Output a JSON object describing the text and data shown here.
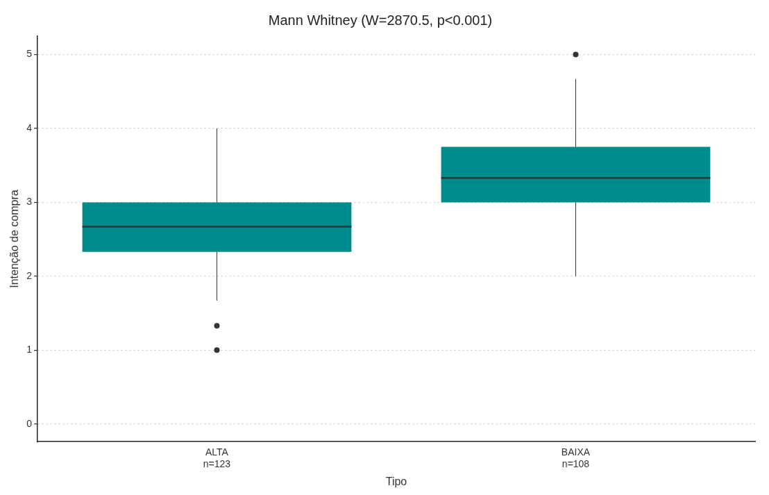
{
  "chart_data": {
    "type": "box",
    "title": "Mann Whitney (W=2870.5, p<0.001)",
    "xlabel": "Tipo",
    "ylabel": "Intenção de compra",
    "categories": [
      "ALTA\nn=123",
      "BAIXA\nn=108"
    ],
    "color": "#008b8b",
    "boxes": [
      {
        "low": 1.67,
        "q1": 2.33,
        "median": 2.67,
        "q3": 3.0,
        "high": 4.0,
        "outliers": [
          1.33,
          1.0
        ]
      },
      {
        "low": 2.0,
        "q1": 3.0,
        "median": 3.33,
        "q3": 3.75,
        "high": 4.67,
        "outliers": [
          5.0
        ]
      }
    ],
    "ylim": [
      -0.24,
      5.25
    ],
    "yticks": [
      0,
      1,
      2,
      3,
      4,
      5
    ],
    "grid": "y",
    "legend": false
  }
}
